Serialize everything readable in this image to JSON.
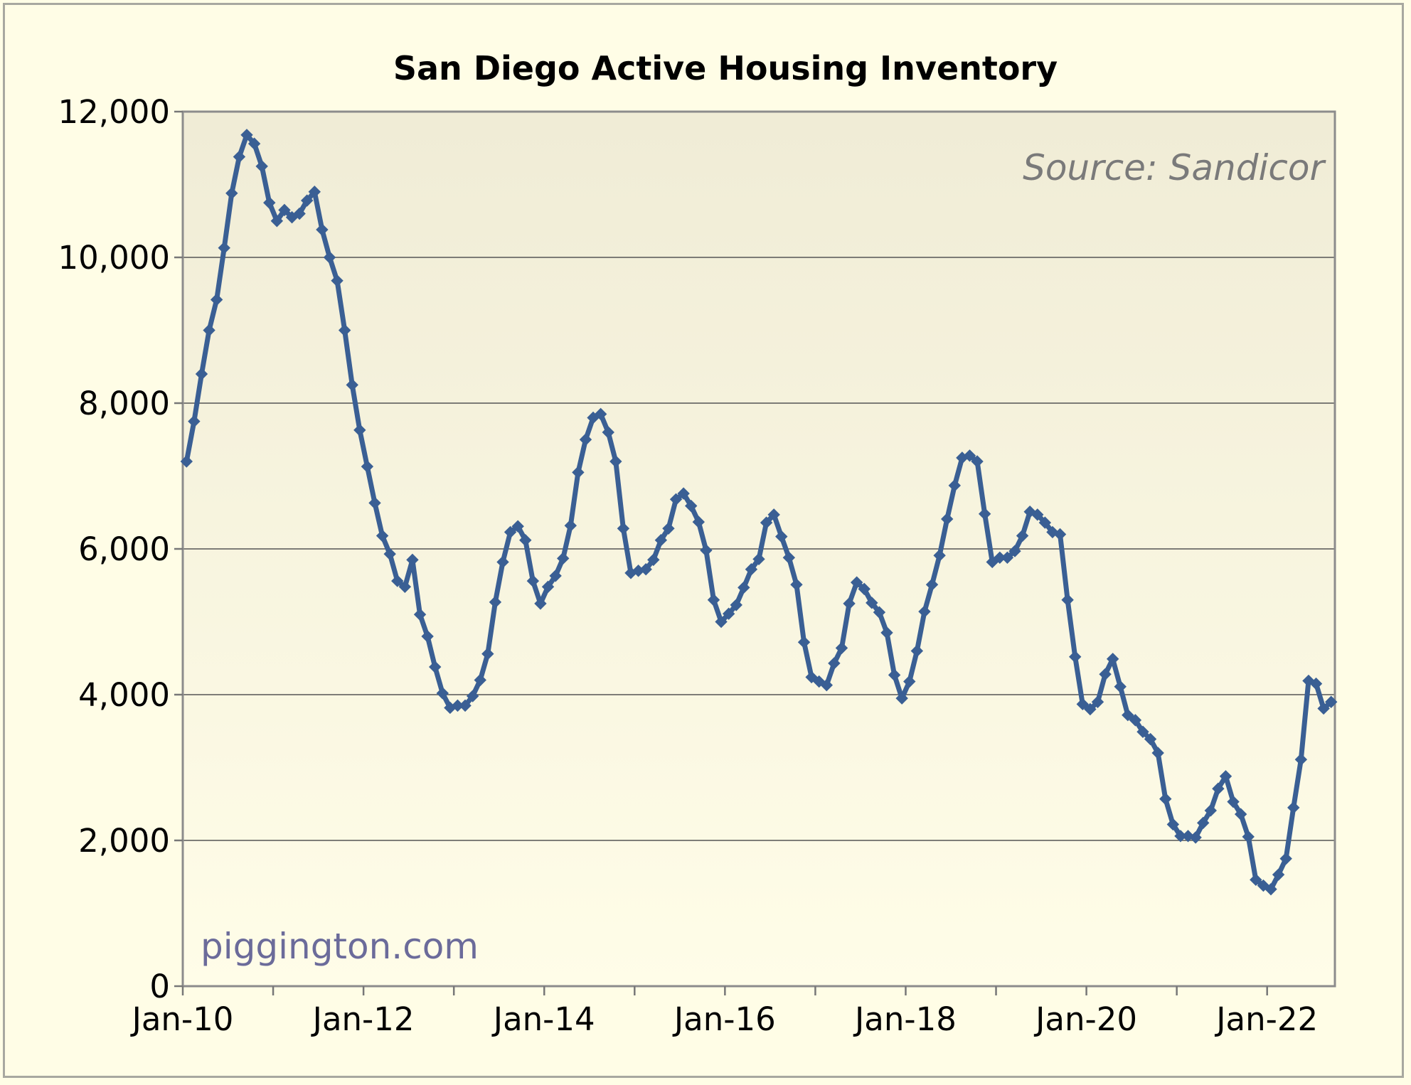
{
  "chart_data": {
    "type": "line",
    "title": "San Diego Active Housing Inventory",
    "source_note": "Source: Sandicor",
    "watermark": "piggington.com",
    "xlabel": "",
    "ylabel": "",
    "ylim": [
      0,
      12000
    ],
    "yticks": [
      0,
      2000,
      4000,
      6000,
      8000,
      10000,
      12000
    ],
    "ytick_labels": [
      "0",
      "2,000",
      "4,000",
      "6,000",
      "8,000",
      "10,000",
      "12,000"
    ],
    "xtick_labels": [
      "Jan-10",
      "Jan-12",
      "Jan-14",
      "Jan-16",
      "Jan-18",
      "Jan-20",
      "Jan-22"
    ],
    "x_start": "2010-01",
    "x_end": "2022-10",
    "grid": "horizontal",
    "series_color": "#3a5f94",
    "series": [
      {
        "name": "",
        "values": [
          7200,
          7750,
          8400,
          9000,
          9420,
          10130,
          10880,
          11380,
          11680,
          11560,
          11250,
          10750,
          10500,
          10650,
          10550,
          10600,
          10780,
          10900,
          10380,
          10000,
          9680,
          9000,
          8250,
          7630,
          7130,
          6630,
          6180,
          5930,
          5560,
          5480,
          5850,
          5100,
          4800,
          4380,
          4020,
          3820,
          3850,
          3850,
          3980,
          4200,
          4560,
          5270,
          5820,
          6230,
          6310,
          6120,
          5560,
          5250,
          5480,
          5630,
          5870,
          6320,
          7050,
          7500,
          7800,
          7850,
          7600,
          7200,
          6280,
          5670,
          5700,
          5720,
          5850,
          6120,
          6280,
          6680,
          6760,
          6590,
          6370,
          5980,
          5300,
          5000,
          5110,
          5230,
          5470,
          5720,
          5860,
          6360,
          6470,
          6170,
          5880,
          5510,
          4720,
          4240,
          4180,
          4130,
          4430,
          4640,
          5250,
          5540,
          5450,
          5260,
          5130,
          4850,
          4270,
          3950,
          4180,
          4600,
          5140,
          5510,
          5910,
          6410,
          6870,
          7250,
          7280,
          7200,
          6480,
          5820,
          5880,
          5880,
          5970,
          6180,
          6510,
          6470,
          6360,
          6230,
          6200,
          5300,
          4520,
          3870,
          3800,
          3900,
          4280,
          4490,
          4110,
          3720,
          3650,
          3490,
          3390,
          3200,
          2570,
          2220,
          2060,
          2060,
          2040,
          2240,
          2410,
          2710,
          2880,
          2530,
          2360,
          2050,
          1460,
          1380,
          1330,
          1530,
          1750,
          2450,
          3110,
          4190,
          4150,
          3810,
          3900
        ]
      }
    ]
  }
}
